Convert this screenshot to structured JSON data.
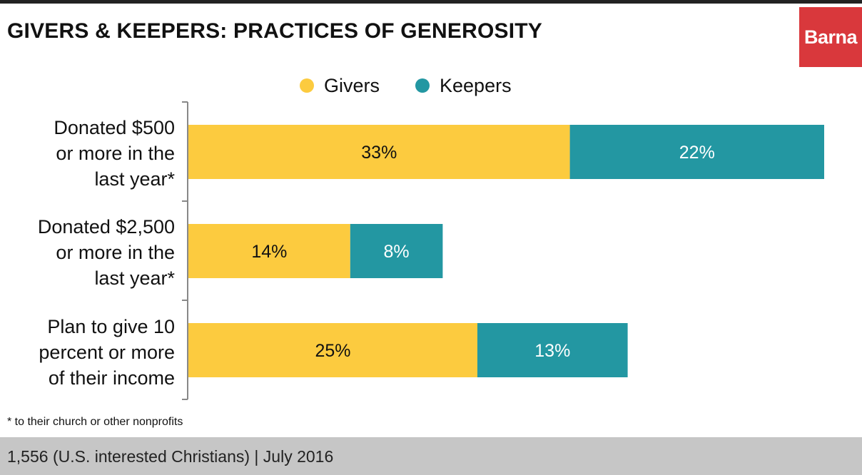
{
  "chart_data": {
    "type": "bar",
    "stacked": true,
    "orientation": "horizontal",
    "title": "GIVERS & KEEPERS: PRACTICES OF GENEROSITY",
    "categories": [
      [
        "Donated $500",
        "or more in the",
        "last year*"
      ],
      [
        "Donated $2,500",
        "or more in the",
        "last year*"
      ],
      [
        "Plan to give 10",
        "percent or more",
        "of their income"
      ]
    ],
    "series": [
      {
        "name": "Givers",
        "color": "#fccb3f",
        "text_color": "#111111",
        "values": [
          33,
          14,
          25
        ],
        "labels": [
          "33%",
          "14%",
          "25%"
        ]
      },
      {
        "name": "Keepers",
        "color": "#2397a2",
        "text_color": "#ffffff",
        "values": [
          22,
          8,
          13
        ],
        "labels": [
          "22%",
          "8%",
          "13%"
        ]
      }
    ],
    "legend_position": "top-center",
    "grid": false,
    "unit": "%"
  },
  "brand": {
    "logo_text": "Barna",
    "logo_color": "#d9383c"
  },
  "footnote": "* to their church or other nonprofits",
  "source": "1,556 (U.S. interested Christians) | July 2016"
}
